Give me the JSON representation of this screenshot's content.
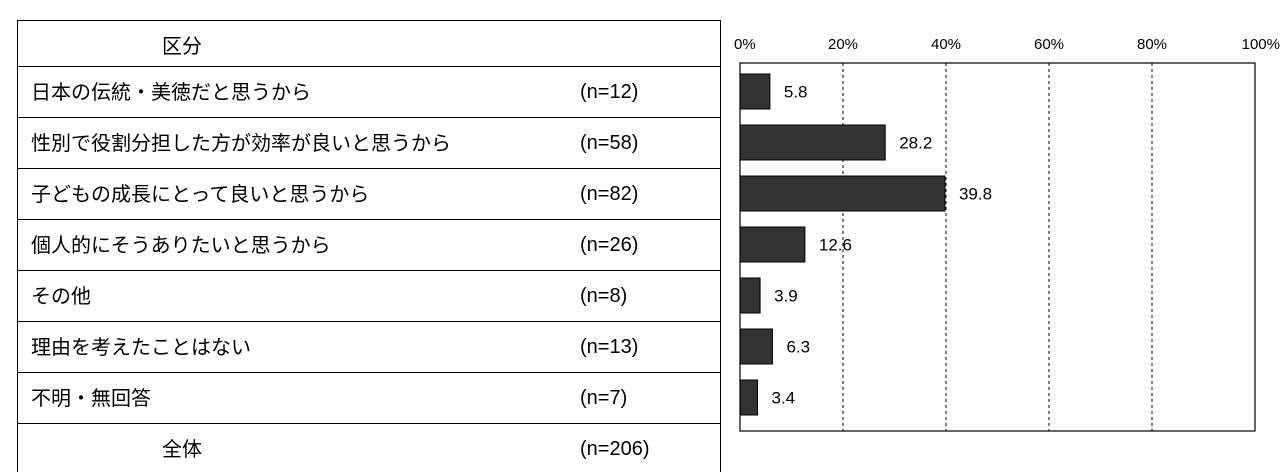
{
  "table": {
    "header": "区分",
    "rows": [
      {
        "label": "日本の伝統・美徳だと思うから",
        "n": "(n=12)"
      },
      {
        "label": "性別で役割分担した方が効率が良いと思うから",
        "n": "(n=58)"
      },
      {
        "label": "子どもの成長にとって良いと思うから",
        "n": "(n=82)"
      },
      {
        "label": "個人的にそうありたいと思うから",
        "n": "(n=26)"
      },
      {
        "label": "その他",
        "n": "(n=8)"
      },
      {
        "label": "理由を考えたことはない",
        "n": "(n=13)"
      },
      {
        "label": "不明・無回答",
        "n": "(n=7)"
      }
    ],
    "total": {
      "label": "全体",
      "n": "(n=206)"
    }
  },
  "chart_data": {
    "type": "bar",
    "orientation": "horizontal",
    "categories": [
      "日本の伝統・美徳だと思うから",
      "性別で役割分担した方が効率が良いと思うから",
      "子どもの成長にとって良いと思うから",
      "個人的にそうありたいと思うから",
      "その他",
      "理由を考えたことはない",
      "不明・無回答"
    ],
    "values": [
      5.8,
      28.2,
      39.8,
      12.6,
      3.9,
      6.3,
      3.4
    ],
    "value_labels": [
      "5.8",
      "28.2",
      "39.8",
      "12.6",
      "3.9",
      "6.3",
      "3.4"
    ],
    "xlim": [
      0,
      100
    ],
    "xticks": [
      0,
      20,
      40,
      60,
      80,
      100
    ],
    "xtick_labels": [
      "0%",
      "20%",
      "40%",
      "60%",
      "80%",
      "100%"
    ],
    "grid": "vertical dashed",
    "bar_color": "#333333"
  }
}
